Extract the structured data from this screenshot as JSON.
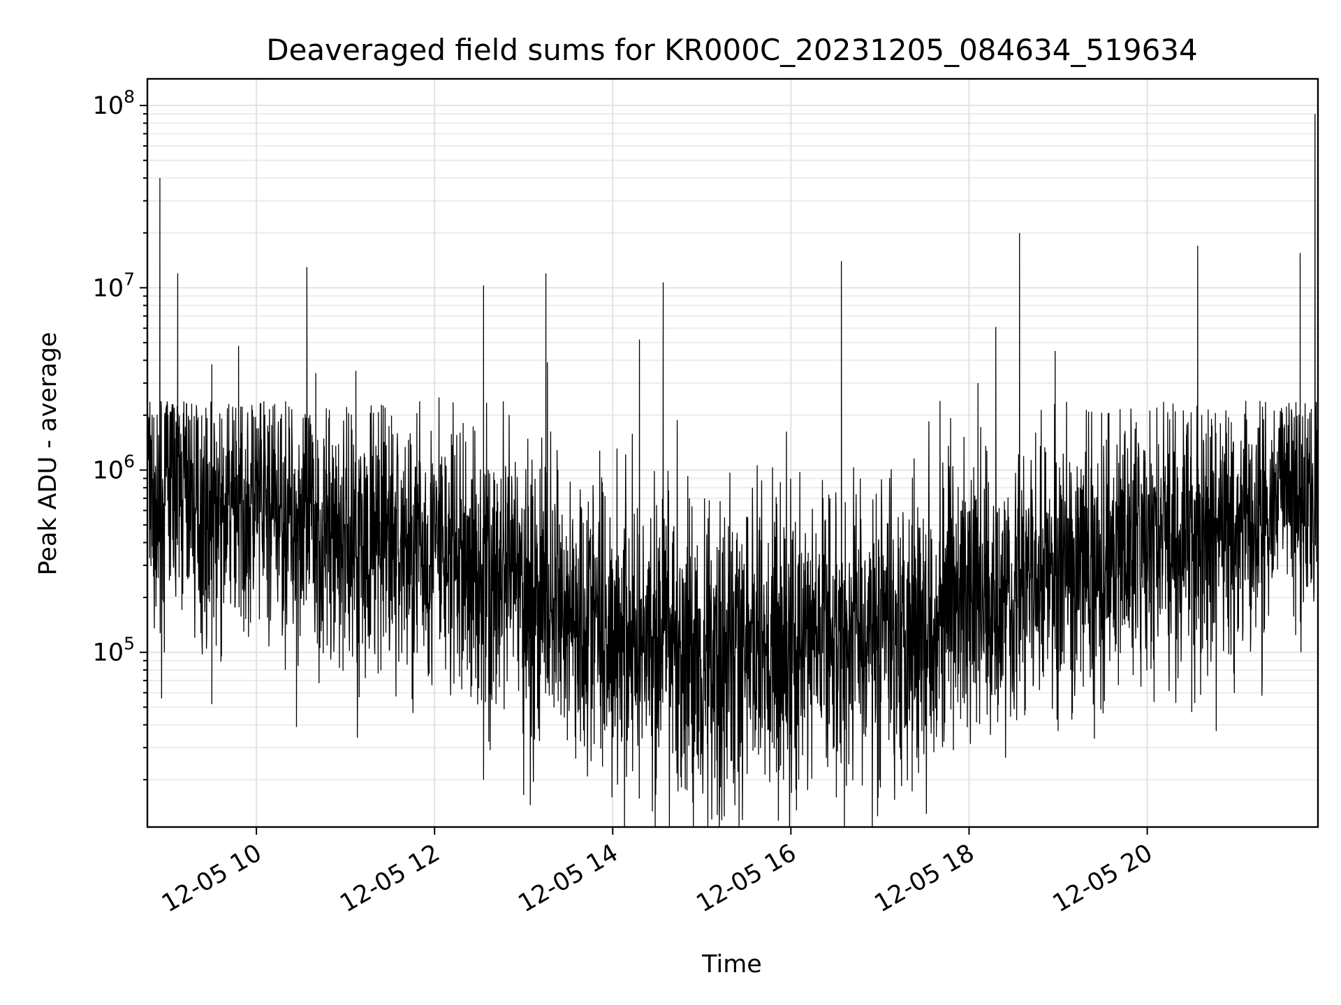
{
  "chart_data": {
    "type": "line",
    "title": "Deaveraged field sums for KR000C_20231205_084634_519634",
    "xlabel": "Time",
    "ylabel": "Peak ADU - average",
    "yscale": "log",
    "xlim": [
      "2023-12-05T08:46:34",
      "2023-12-05T21:55:00"
    ],
    "ylim": [
      11000,
      140000000
    ],
    "grid": true,
    "grid_minor_y": true,
    "line_color": "#000000",
    "x_ticks": [
      {
        "value": "2023-12-05T10:00:00",
        "label": "12-05 10"
      },
      {
        "value": "2023-12-05T12:00:00",
        "label": "12-05 12"
      },
      {
        "value": "2023-12-05T14:00:00",
        "label": "12-05 14"
      },
      {
        "value": "2023-12-05T16:00:00",
        "label": "12-05 16"
      },
      {
        "value": "2023-12-05T18:00:00",
        "label": "12-05 18"
      },
      {
        "value": "2023-12-05T20:00:00",
        "label": "12-05 20"
      }
    ],
    "y_ticks": [
      {
        "value": 100000,
        "base": "10",
        "exp": "5"
      },
      {
        "value": 1000000,
        "base": "10",
        "exp": "6"
      },
      {
        "value": 10000000,
        "base": "10",
        "exp": "7"
      },
      {
        "value": 100000000,
        "base": "10",
        "exp": "8"
      }
    ],
    "series": [
      {
        "points": [
          [
            "2023-12-05T08:46:34",
            1200000
          ],
          [
            "2023-12-05T08:54:00",
            400000
          ],
          [
            "2023-12-05T09:00:00",
            1000000
          ],
          [
            "2023-12-05T09:10:00",
            900000
          ],
          [
            "2023-12-05T09:20:00",
            600000
          ],
          [
            "2023-12-05T09:30:00",
            550000
          ],
          [
            "2023-12-05T09:45:00",
            600000
          ],
          [
            "2023-12-05T10:00:00",
            600000
          ],
          [
            "2023-12-05T10:30:00",
            550000
          ],
          [
            "2023-12-05T10:40:00",
            450000
          ],
          [
            "2023-12-05T11:00:00",
            450000
          ],
          [
            "2023-12-05T11:30:00",
            400000
          ],
          [
            "2023-12-05T12:00:00",
            350000
          ],
          [
            "2023-12-05T12:30:00",
            280000
          ],
          [
            "2023-12-05T13:00:00",
            220000
          ],
          [
            "2023-12-05T13:30:00",
            170000
          ],
          [
            "2023-12-05T14:00:00",
            140000
          ],
          [
            "2023-12-05T14:30:00",
            110000
          ],
          [
            "2023-12-05T15:00:00",
            100000
          ],
          [
            "2023-12-05T15:30:00",
            100000
          ],
          [
            "2023-12-05T16:00:00",
            110000
          ],
          [
            "2023-12-05T16:30:00",
            120000
          ],
          [
            "2023-12-05T17:00:00",
            140000
          ],
          [
            "2023-12-05T17:30:00",
            160000
          ],
          [
            "2023-12-05T18:00:00",
            190000
          ],
          [
            "2023-12-05T18:30:00",
            230000
          ],
          [
            "2023-12-05T19:00:00",
            280000
          ],
          [
            "2023-12-05T19:30:00",
            330000
          ],
          [
            "2023-12-05T20:00:00",
            380000
          ],
          [
            "2023-12-05T20:30:00",
            420000
          ],
          [
            "2023-12-05T21:00:00",
            450000
          ],
          [
            "2023-12-05T21:20:00",
            500000
          ],
          [
            "2023-12-05T21:35:00",
            1100000
          ],
          [
            "2023-12-05T21:45:00",
            800000
          ],
          [
            "2023-12-05T21:55:00",
            900000
          ]
        ],
        "spikes": [
          [
            "2023-12-05T08:55:00",
            40000000
          ],
          [
            "2023-12-05T09:07:00",
            12000000
          ],
          [
            "2023-12-05T09:30:00",
            3800000
          ],
          [
            "2023-12-05T09:48:00",
            4800000
          ],
          [
            "2023-12-05T10:34:00",
            13000000
          ],
          [
            "2023-12-05T10:40:00",
            3400000
          ],
          [
            "2023-12-05T11:07:00",
            3500000
          ],
          [
            "2023-12-05T12:03:00",
            2500000
          ],
          [
            "2023-12-05T12:33:00",
            10300000
          ],
          [
            "2023-12-05T13:15:00",
            12000000
          ],
          [
            "2023-12-05T13:16:00",
            3900000
          ],
          [
            "2023-12-05T14:18:00",
            5200000
          ],
          [
            "2023-12-05T14:34:00",
            10700000
          ],
          [
            "2023-12-05T16:34:00",
            14000000
          ],
          [
            "2023-12-05T18:06:00",
            3000000
          ],
          [
            "2023-12-05T18:18:00",
            6100000
          ],
          [
            "2023-12-05T18:34:00",
            20000000
          ],
          [
            "2023-12-05T18:58:00",
            4500000
          ],
          [
            "2023-12-05T20:34:00",
            17000000
          ],
          [
            "2023-12-05T21:43:00",
            15500000
          ],
          [
            "2023-12-05T21:53:00",
            90000000
          ]
        ],
        "dips": [
          [
            "2023-12-05T09:30:00",
            52000
          ],
          [
            "2023-12-05T10:27:00",
            39000
          ],
          [
            "2023-12-05T11:08:00",
            34000
          ],
          [
            "2023-12-05T12:33:00",
            20000
          ],
          [
            "2023-12-05T13:00:00",
            16500
          ],
          [
            "2023-12-05T14:29:00",
            16500
          ],
          [
            "2023-12-05T14:50:00",
            17500
          ],
          [
            "2023-12-05T15:55:00",
            20000
          ],
          [
            "2023-12-05T17:06:00",
            33000
          ],
          [
            "2023-12-05T19:00:00",
            37000
          ],
          [
            "2023-12-05T20:30:00",
            47000
          ]
        ]
      }
    ]
  }
}
